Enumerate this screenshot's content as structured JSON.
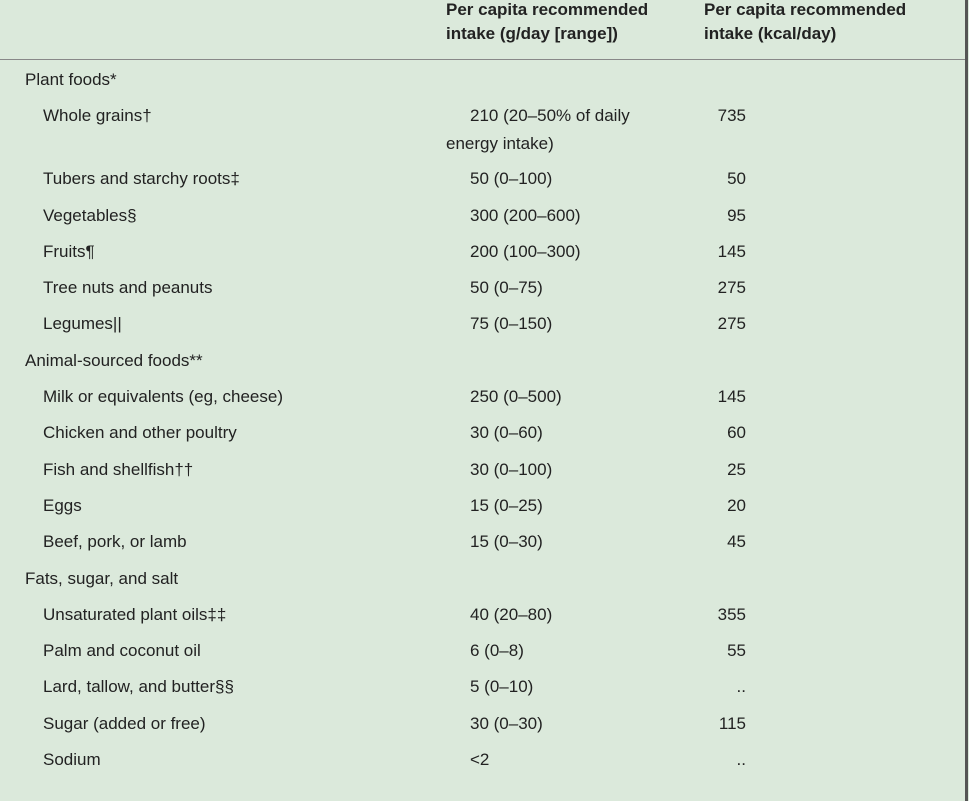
{
  "header": {
    "columns": [
      "Per capita recommended intake (g/day [range])",
      "Per capita recommended intake (kcal/day)"
    ]
  },
  "sections": [
    {
      "title": "Plant foods*",
      "rows": [
        [
          "Whole grains†",
          "210 (20–50% of daily energy intake)",
          "735"
        ],
        [
          "Tubers and starchy roots‡",
          "50 (0–100)",
          "50"
        ],
        [
          "Vegetables§",
          "300 (200–600)",
          "95"
        ],
        [
          "Fruits¶",
          "200 (100–300)",
          "145"
        ],
        [
          "Tree nuts and peanuts",
          "50 (0–75)",
          "275"
        ],
        [
          "Legumes||",
          "75 (0–150)",
          "275"
        ]
      ]
    },
    {
      "title": "Animal-sourced foods**",
      "rows": [
        [
          "Milk or equivalents (eg, cheese)",
          "250 (0–500)",
          "145"
        ],
        [
          "Chicken and other poultry",
          "30 (0–60)",
          "60"
        ],
        [
          "Fish and shellfish††",
          "30 (0–100)",
          "25"
        ],
        [
          "Eggs",
          "15 (0–25)",
          "20"
        ],
        [
          "Beef, pork, or lamb",
          "15 (0–30)",
          "45"
        ]
      ]
    },
    {
      "title": "Fats, sugar, and salt",
      "rows": [
        [
          "Unsaturated plant oils‡‡",
          "40 (20–80)",
          "355"
        ],
        [
          "Palm and coconut oil",
          "6 (0–8)",
          "55"
        ],
        [
          "Lard, tallow, and butter§§",
          "5 (0–10)",
          ".."
        ],
        [
          "Sugar (added or free)",
          "30 (0–30)",
          "115"
        ],
        [
          "Sodium",
          "<2",
          ".."
        ]
      ]
    }
  ]
}
